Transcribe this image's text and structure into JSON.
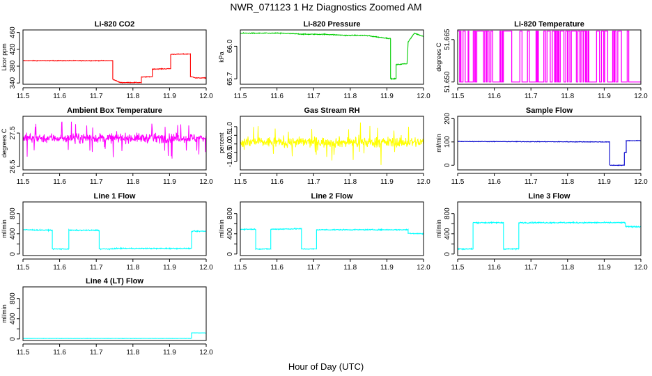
{
  "figure": {
    "title": "NWR_071123  1 Hz Diagnostics Zoomed AM",
    "xlabel": "Hour of Day (UTC)"
  },
  "chart_data": [
    {
      "type": "line",
      "title": "Li-820 CO2",
      "ylabel": "Licor ppm",
      "color": "#ff0000",
      "xlim": [
        11.5,
        12.0
      ],
      "ylim": [
        337,
        466
      ],
      "xticks": [
        "11.5",
        "11.6",
        "11.7",
        "11.8",
        "11.9",
        "12.0"
      ],
      "yticks": [
        340,
        380,
        420,
        460
      ],
      "ytick_labels": [
        "340",
        "380",
        "420",
        "460"
      ],
      "series": [
        {
          "name": "CO2",
          "noise": 0.8,
          "x": [
            11.5,
            11.745,
            11.745,
            11.765,
            11.765,
            11.823,
            11.823,
            11.853,
            11.853,
            11.903,
            11.903,
            11.957,
            11.957,
            11.97,
            11.97,
            12.0
          ],
          "y": [
            393,
            393,
            349,
            341,
            341,
            341,
            354,
            355,
            373,
            374,
            408,
            409,
            355,
            353,
            352,
            352
          ]
        }
      ]
    },
    {
      "type": "line",
      "title": "Li-820 Pressure",
      "ylabel": "kPa",
      "color": "#00cc00",
      "xlim": [
        11.5,
        12.0
      ],
      "ylim": [
        65.65,
        66.15
      ],
      "xticks": [
        "11.5",
        "11.6",
        "11.7",
        "11.8",
        "11.9",
        "12.0"
      ],
      "yticks": [
        65.7,
        66.0
      ],
      "ytick_labels": [
        "65.7",
        "66.0"
      ],
      "series": [
        {
          "name": "Pressure",
          "noise": 0.004,
          "x": [
            11.5,
            11.61,
            11.68,
            11.73,
            11.79,
            11.8,
            11.84,
            11.91,
            11.91,
            11.925,
            11.925,
            11.955,
            11.958,
            11.975,
            12.0
          ],
          "y": [
            66.12,
            66.12,
            66.11,
            66.11,
            66.1,
            66.1,
            66.1,
            66.07,
            65.7,
            65.7,
            65.83,
            65.84,
            66.04,
            66.12,
            66.09
          ]
        }
      ]
    },
    {
      "type": "binary",
      "title": "Li-820 Temperature",
      "ylabel": "degrees C",
      "color": "#ff00ff",
      "xlim": [
        11.5,
        12.0
      ],
      "ylim": [
        51.6492,
        51.6684
      ],
      "xticks": [
        "11.5",
        "11.6",
        "11.7",
        "11.8",
        "11.9",
        "12.0"
      ],
      "yticks": [
        51.65,
        51.665
      ],
      "ytick_labels": [
        "51.650",
        "51.665"
      ],
      "levels": [
        51.65,
        51.668
      ],
      "end_x": 11.967
    },
    {
      "type": "noise",
      "title": "Ambient Box Temperature",
      "ylabel": "degrees C",
      "color": "#ff00ff",
      "xlim": [
        11.5,
        12.0
      ],
      "ylim": [
        26.4,
        28.0
      ],
      "xticks": [
        "11.5",
        "11.6",
        "11.7",
        "11.8",
        "11.9",
        "12.0"
      ],
      "yticks": [
        26.5,
        27.5
      ],
      "ytick_labels": [
        "26.5",
        "27.5"
      ],
      "mean": 27.35,
      "amp": 0.14,
      "spike": 0.55
    },
    {
      "type": "noise",
      "title": "Gas Stream RH",
      "ylabel": "percent",
      "color": "#ffff00",
      "xlim": [
        11.5,
        12.0
      ],
      "ylim": [
        -1.5,
        1.6
      ],
      "xticks": [
        "11.5",
        "11.6",
        "11.7",
        "11.8",
        "11.9",
        "12.0"
      ],
      "yticks": [
        -1.0,
        -0.5,
        0.0,
        0.5,
        1.0
      ],
      "ytick_labels": [
        "-1.0",
        "-0.5",
        "0.0",
        "0.5",
        "1.0"
      ],
      "mean": 0.1,
      "amp": 0.3,
      "spike": 1.1
    },
    {
      "type": "line",
      "title": "Sample Flow",
      "ylabel": "ml/min",
      "color": "#0000cc",
      "xlim": [
        11.5,
        12.0
      ],
      "ylim": [
        -20,
        210
      ],
      "xticks": [
        "11.5",
        "11.6",
        "11.7",
        "11.8",
        "11.9",
        "12.0"
      ],
      "yticks": [
        0,
        100,
        200
      ],
      "ytick_labels": [
        "0",
        "100",
        "200"
      ],
      "series": [
        {
          "name": "Sample Flow",
          "noise": 1.2,
          "x": [
            11.5,
            11.915,
            11.915,
            11.955,
            11.955,
            11.96,
            11.96,
            12.0
          ],
          "y": [
            102,
            100,
            0,
            0,
            55,
            55,
            105,
            106
          ]
        }
      ]
    },
    {
      "type": "line",
      "title": "Line 1 Flow",
      "ylabel": "ml/min",
      "color": "#00ffff",
      "xlim": [
        11.5,
        12.0
      ],
      "ylim": [
        -30,
        1030
      ],
      "xticks": [
        "11.5",
        "11.6",
        "11.7",
        "11.8",
        "11.9",
        "12.0"
      ],
      "yticks": [
        0,
        200,
        400,
        600,
        800
      ],
      "ytick_labels": [
        "0",
        "",
        "400",
        "",
        "800"
      ],
      "series": [
        {
          "name": "Line 1",
          "noise": 10,
          "x": [
            11.5,
            11.58,
            11.58,
            11.625,
            11.625,
            11.708,
            11.708,
            11.75,
            11.75,
            11.96,
            11.96,
            12.0
          ],
          "y": [
            480,
            470,
            100,
            100,
            470,
            470,
            100,
            100,
            110,
            110,
            450,
            450
          ]
        }
      ]
    },
    {
      "type": "line",
      "title": "Line 2 Flow",
      "ylabel": "ml/min",
      "color": "#00ffff",
      "xlim": [
        11.5,
        12.0
      ],
      "ylim": [
        -30,
        1030
      ],
      "xticks": [
        "11.5",
        "11.6",
        "11.7",
        "11.8",
        "11.9",
        "12.0"
      ],
      "yticks": [
        0,
        200,
        400,
        600,
        800
      ],
      "ytick_labels": [
        "0",
        "",
        "400",
        "",
        "800"
      ],
      "series": [
        {
          "name": "Line 2",
          "noise": 10,
          "x": [
            11.5,
            11.542,
            11.542,
            11.583,
            11.583,
            11.667,
            11.667,
            11.708,
            11.708,
            11.958,
            11.958,
            12.0
          ],
          "y": [
            490,
            490,
            100,
            100,
            490,
            500,
            100,
            100,
            480,
            480,
            410,
            400
          ]
        }
      ]
    },
    {
      "type": "line",
      "title": "Line 3 Flow",
      "ylabel": "ml/min",
      "color": "#00ffff",
      "xlim": [
        11.5,
        12.0
      ],
      "ylim": [
        -30,
        1030
      ],
      "xticks": [
        "11.5",
        "11.6",
        "11.7",
        "11.8",
        "11.9",
        "12.0"
      ],
      "yticks": [
        0,
        200,
        400,
        600,
        800
      ],
      "ytick_labels": [
        "0",
        "",
        "400",
        "",
        "800"
      ],
      "series": [
        {
          "name": "Line 3",
          "noise": 12,
          "x": [
            11.5,
            11.542,
            11.542,
            11.625,
            11.625,
            11.667,
            11.667,
            11.958,
            11.958,
            12.0
          ],
          "y": [
            100,
            100,
            620,
            620,
            100,
            100,
            620,
            620,
            540,
            540
          ]
        }
      ]
    },
    {
      "type": "line",
      "title": "Line 4 (LT) Flow",
      "ylabel": "ml/min",
      "color": "#00ffff",
      "xlim": [
        11.5,
        12.0
      ],
      "ylim": [
        -30,
        1030
      ],
      "xticks": [
        "11.5",
        "11.6",
        "11.7",
        "11.8",
        "11.9",
        "12.0"
      ],
      "yticks": [
        0,
        200,
        400,
        600,
        800
      ],
      "ytick_labels": [
        "0",
        "",
        "400",
        "",
        "800"
      ],
      "series": [
        {
          "name": "Line 4",
          "noise": 3,
          "x": [
            11.5,
            11.96,
            11.96,
            12.0
          ],
          "y": [
            10,
            10,
            120,
            120
          ]
        }
      ]
    }
  ]
}
